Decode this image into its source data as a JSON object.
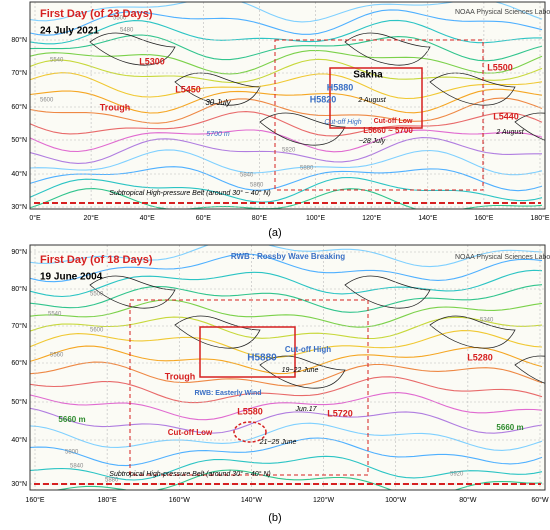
{
  "panels": [
    {
      "label": "(a)",
      "title": "First Day (of 23 Days)",
      "date": "24 July 2021",
      "credit": "NOAA Physical Sciences Laboratory",
      "lat_ticks": [
        "80°N",
        "70°N",
        "60°N",
        "50°N",
        "40°N",
        "30°N"
      ],
      "lon_ticks": [
        "0°E",
        "20°E",
        "40°E",
        "60°E",
        "80°E",
        "100°E",
        "120°E",
        "140°E",
        "160°E",
        "180°E"
      ],
      "annotations": [
        {
          "text": "L5300",
          "color": "#d62020"
        },
        {
          "text": "L5450",
          "color": "#d62020"
        },
        {
          "text": "30 July",
          "color": "#000000"
        },
        {
          "text": "Trough",
          "color": "#d62020"
        },
        {
          "text": "5700 m",
          "color": "#3a6fc4"
        },
        {
          "text": "Sakha",
          "color": "#000000"
        },
        {
          "text": "H5880",
          "color": "#3a6fc4"
        },
        {
          "text": "2 August",
          "color": "#000000"
        },
        {
          "text": "H5820",
          "color": "#3a6fc4"
        },
        {
          "text": "Cut-off High",
          "color": "#3a6fc4"
        },
        {
          "text": "Cut-off Low",
          "color": "#d62020"
        },
        {
          "text": "L5660 ~ 5700",
          "color": "#d62020"
        },
        {
          "text": "~28 July",
          "color": "#000000"
        },
        {
          "text": "L5500",
          "color": "#d62020"
        },
        {
          "text": "L5440",
          "color": "#d62020"
        },
        {
          "text": "2 August",
          "color": "#000000"
        },
        {
          "text": "Subtropical High-pressure Belt (around 30° − 40° N)",
          "color": "#000000"
        }
      ],
      "contour_labels": [
        "5500",
        "5480",
        "5540",
        "5600",
        "5840",
        "5860",
        "5820",
        "5880"
      ]
    },
    {
      "label": "(b)",
      "title": "First Day (of 18 Days)",
      "date": "19 June 2004",
      "credit": "NOAA Physical Sciences Laboratory",
      "lat_ticks": [
        "90°N",
        "80°N",
        "70°N",
        "60°N",
        "50°N",
        "40°N",
        "30°N"
      ],
      "lon_ticks": [
        "160°E",
        "180°E",
        "160°W",
        "140°W",
        "120°W",
        "100°W",
        "80°W",
        "60°W"
      ],
      "annotations": [
        {
          "text": "RWB : Rossby Wave Breaking",
          "color": "#3a6fc4"
        },
        {
          "text": "H5880",
          "color": "#3a6fc4"
        },
        {
          "text": "Cut-off High",
          "color": "#3a6fc4"
        },
        {
          "text": "19~22 June",
          "color": "#000000"
        },
        {
          "text": "Trough",
          "color": "#d62020"
        },
        {
          "text": "RWB: Easterly Wind",
          "color": "#3a6fc4"
        },
        {
          "text": "L5580",
          "color": "#d62020"
        },
        {
          "text": "Jun.17",
          "color": "#000000"
        },
        {
          "text": "L5720",
          "color": "#d62020"
        },
        {
          "text": "Cut-off Low",
          "color": "#d62020"
        },
        {
          "text": "21~25 June",
          "color": "#000000"
        },
        {
          "text": "5660 m",
          "color": "#2e8b2e"
        },
        {
          "text": "5660 m",
          "color": "#2e8b2e"
        },
        {
          "text": "L5280",
          "color": "#d62020"
        },
        {
          "text": "Subtropical High-pressure Belt (around 30° − 40° N)",
          "color": "#000000"
        }
      ],
      "contour_labels": [
        "5500",
        "5540",
        "5560",
        "5600",
        "5800",
        "5840",
        "5880",
        "5920",
        "5340"
      ]
    }
  ]
}
